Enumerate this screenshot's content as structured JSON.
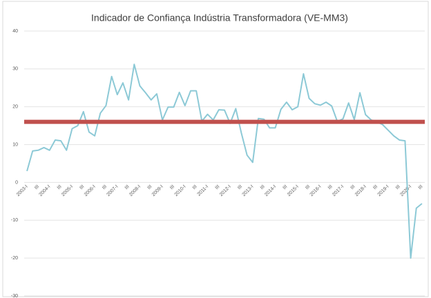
{
  "chart_data": {
    "type": "line",
    "title": "Indicador de Confiança Indústria Transformadora (VE-MM3)",
    "categories": [
      "2003-I",
      null,
      "III",
      null,
      "2004-I",
      null,
      "III",
      null,
      "2005-I",
      null,
      "III",
      null,
      "2006-I",
      null,
      "III",
      null,
      "2007-I",
      null,
      "III",
      null,
      "2008-I",
      null,
      "III",
      null,
      "2009-I",
      null,
      "III",
      null,
      "2010-I",
      null,
      "III",
      null,
      "2011-I",
      null,
      "III",
      null,
      "2012-I",
      null,
      "III",
      null,
      "2013-I",
      null,
      "III",
      null,
      "2014-I",
      null,
      "III",
      null,
      "2015-I",
      null,
      "III",
      null,
      "2016-I",
      null,
      "III",
      null,
      "2017-I",
      null,
      "III",
      null,
      "2018-I",
      null,
      "III",
      null,
      "2019-I",
      null,
      "III",
      null,
      "2020-I",
      null,
      "III"
    ],
    "series": [
      {
        "color": "#8cc9d6",
        "values": [
          3,
          8.3,
          8.5,
          9.2,
          8.5,
          11.2,
          11,
          8.5,
          14.2,
          15,
          18.7,
          13.3,
          12.3,
          18.3,
          20.3,
          28,
          23.2,
          26.3,
          21.8,
          31.2,
          25.5,
          23.7,
          21.8,
          23.4,
          16.5,
          19.9,
          19.9,
          23.8,
          20.3,
          24.2,
          24.2,
          16.2,
          18,
          16.5,
          19.2,
          19.1,
          15.6,
          19.5,
          13,
          7.2,
          5.3,
          16.9,
          16.7,
          14.4,
          14.4,
          19.3,
          21.2,
          19.2,
          20,
          28.7,
          22.2,
          20.8,
          20.4,
          21.2,
          20.2,
          16.1,
          16.8,
          21,
          16.6,
          23.7,
          17.9,
          16.5,
          16,
          15.3,
          13.8,
          12.3,
          11.2,
          11,
          -20,
          -6.8,
          -5.6
        ]
      }
    ],
    "reference_line": {
      "value": 16,
      "color": "#c0504d"
    },
    "ylim": [
      -30,
      40
    ],
    "yticks": [
      -30,
      -20,
      -10,
      0,
      10,
      20,
      30,
      40
    ],
    "grid": true
  }
}
